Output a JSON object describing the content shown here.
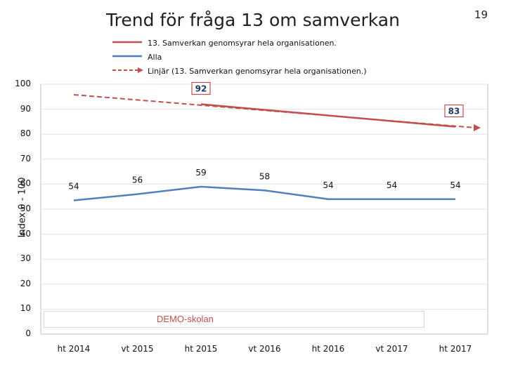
{
  "title": "Trend för fråga 13 om samverkan",
  "page_number": "19",
  "school_label": "DEMO-skolan",
  "colors": {
    "series": "#c0504d",
    "average": "#4f81bd",
    "trend": "#c0504d",
    "label_box": "#c0504d"
  },
  "chart_data": {
    "type": "line",
    "title": "Trend för fråga 13 om samverkan",
    "ylabel": "Index 0 - 100",
    "xlabel": "",
    "ylim": [
      0,
      100
    ],
    "yticks": [
      "0",
      "10",
      "20",
      "30",
      "40",
      "50",
      "60",
      "70",
      "80",
      "90",
      "100"
    ],
    "categories": [
      "ht 2014",
      "vt 2015",
      "ht 2015",
      "vt 2016",
      "ht 2016",
      "vt 2017",
      "ht 2017"
    ],
    "series": [
      {
        "name": "13. Samverkan genomsyrar hela organisationen.",
        "values": [
          null,
          null,
          92,
          null,
          null,
          null,
          83
        ],
        "labels": [
          "",
          "",
          "92",
          "",
          "",
          "",
          "83"
        ]
      },
      {
        "name": "Alla",
        "values": [
          53.5,
          56,
          59,
          57.5,
          54,
          54,
          54
        ],
        "labels": [
          "54",
          "56",
          "59",
          "58",
          "54",
          "54",
          "54"
        ]
      },
      {
        "name": "Linjär (13. Samverkan genomsyrar hela organisationen.)",
        "values": [
          95.8,
          null,
          null,
          null,
          null,
          null,
          82.6
        ],
        "style": "dashed-arrow"
      }
    ]
  }
}
